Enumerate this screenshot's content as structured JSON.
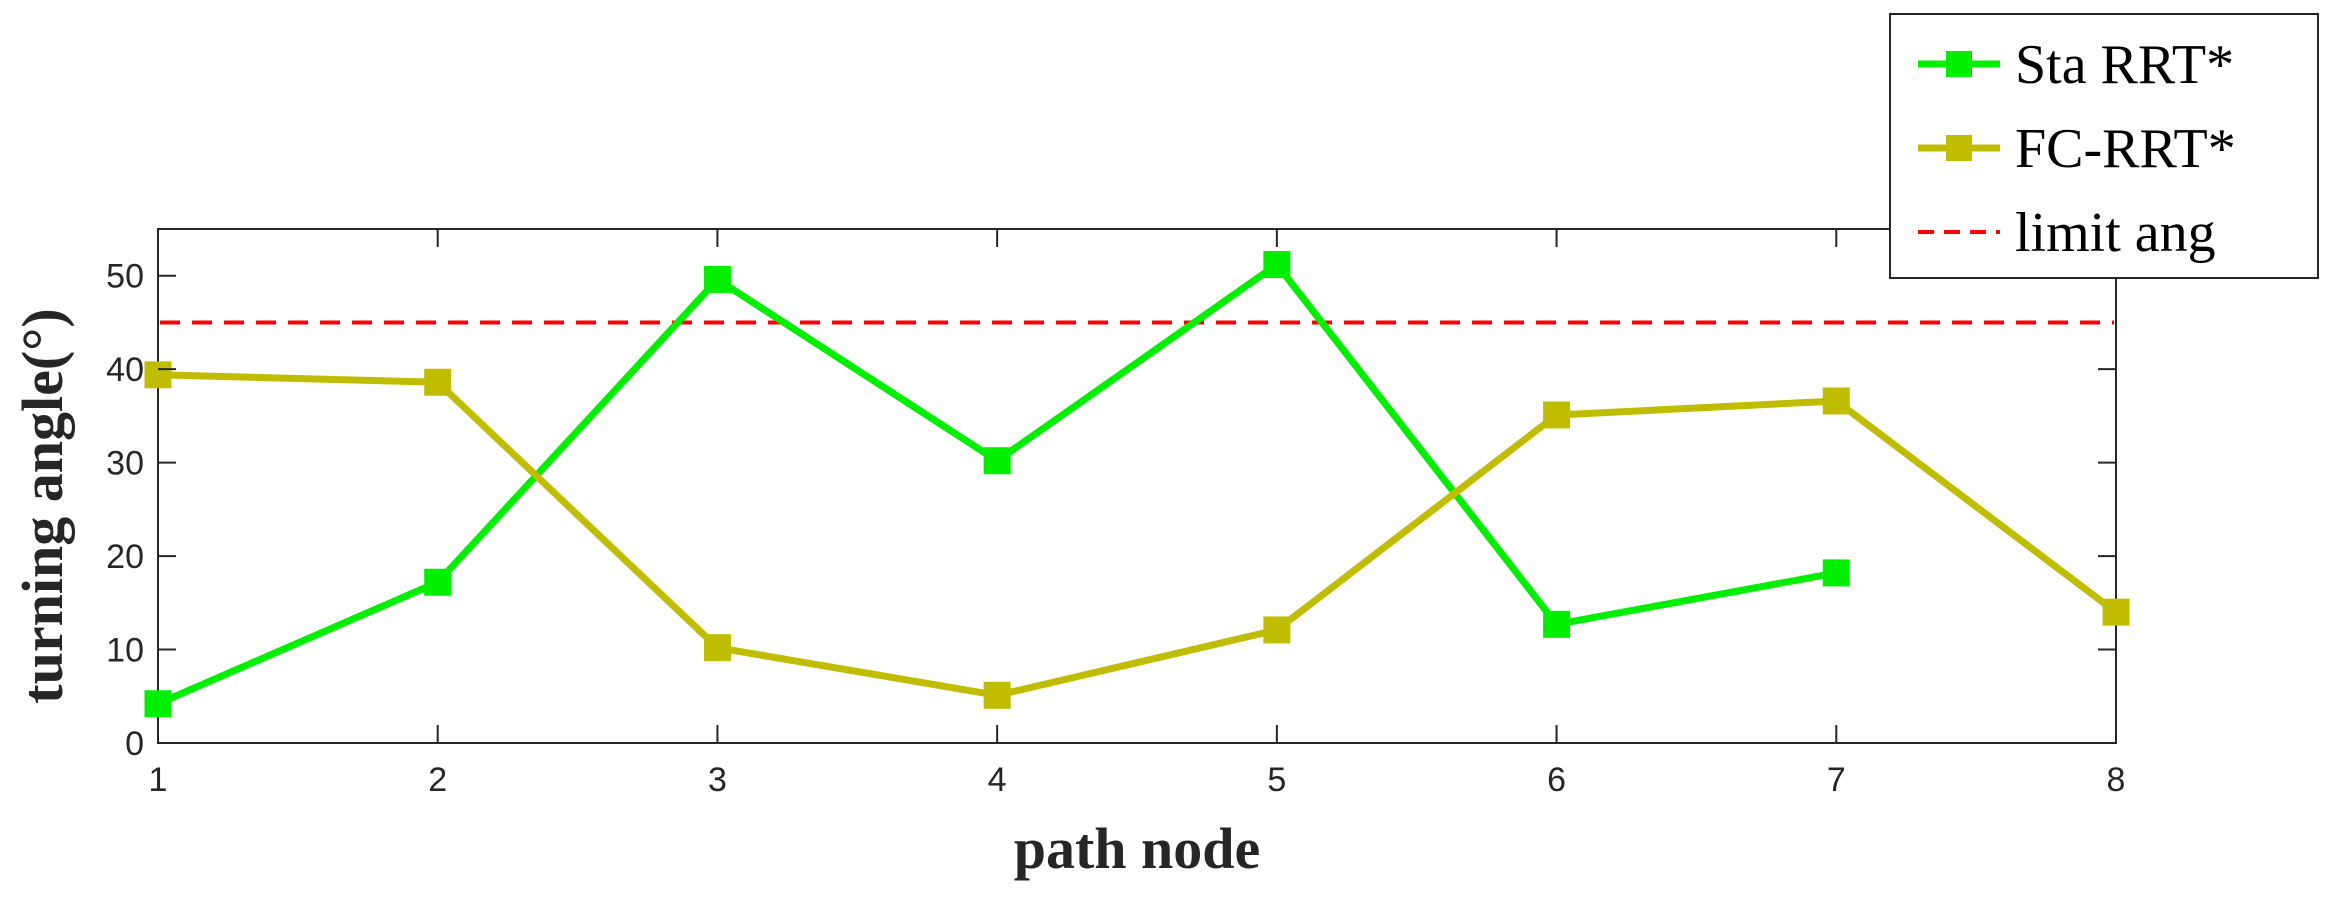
{
  "chart_data": {
    "type": "line",
    "xlabel": "path node",
    "ylabel": "turning angle(°)",
    "x_ticks": [
      "1",
      "2",
      "3",
      "4",
      "5",
      "6",
      "7",
      "8"
    ],
    "y_ticks": [
      "0",
      "10",
      "20",
      "30",
      "40",
      "50"
    ],
    "xlim": [
      1,
      8
    ],
    "ylim": [
      0,
      55
    ],
    "grid": false,
    "legend_position": "top-right",
    "series": [
      {
        "name": "Sta RRT*",
        "color": "#00ee00",
        "marker": "square",
        "x": [
          1,
          2,
          3,
          4,
          5,
          6,
          7
        ],
        "y": [
          4.2,
          17.2,
          49.6,
          30.2,
          51.2,
          12.7,
          18.2
        ]
      },
      {
        "name": "FC-RRT*",
        "color": "#c0bd00",
        "marker": "square",
        "x": [
          1,
          2,
          3,
          4,
          5,
          6,
          7,
          8
        ],
        "y": [
          39.4,
          38.6,
          10.2,
          5.1,
          12.1,
          35.1,
          36.6,
          14.0
        ]
      }
    ],
    "reference_lines": [
      {
        "name": "limit ang",
        "color": "#ff0000",
        "style": "dashed",
        "y": 45
      }
    ]
  }
}
